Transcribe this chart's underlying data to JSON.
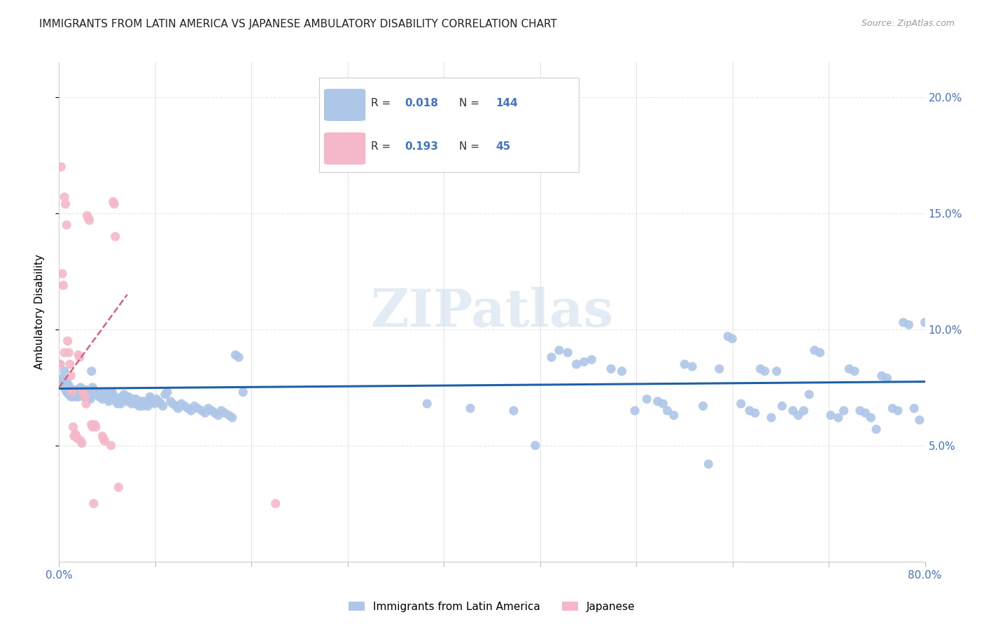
{
  "title": "IMMIGRANTS FROM LATIN AMERICA VS JAPANESE AMBULATORY DISABILITY CORRELATION CHART",
  "source": "Source: ZipAtlas.com",
  "ylabel": "Ambulatory Disability",
  "watermark": "ZIPatlas",
  "blue_scatter_color": "#aec6e8",
  "pink_scatter_color": "#f4b8c8",
  "blue_line_color": "#1f5fa6",
  "pink_line_color": "#d9607a",
  "blue_label": "Immigrants from Latin America",
  "pink_label": "Japanese",
  "blue_R": "0.018",
  "blue_N": "144",
  "pink_R": "0.193",
  "pink_N": "45",
  "xlim": [
    0.0,
    0.8
  ],
  "ylim": [
    0.0,
    0.215
  ],
  "yticks": [
    0.05,
    0.1,
    0.15,
    0.2
  ],
  "ytick_labels": [
    "5.0%",
    "10.0%",
    "15.0%",
    "20.0%"
  ],
  "blue_trend_x": [
    0.0,
    0.8
  ],
  "blue_trend_y": [
    0.0745,
    0.0775
  ],
  "pink_trend_x": [
    0.0,
    0.063
  ],
  "pink_trend_y": [
    0.075,
    0.115
  ],
  "blue_scatter": [
    [
      0.001,
      0.085
    ],
    [
      0.002,
      0.077
    ],
    [
      0.003,
      0.079
    ],
    [
      0.004,
      0.078
    ],
    [
      0.005,
      0.076
    ],
    [
      0.005,
      0.082
    ],
    [
      0.006,
      0.075
    ],
    [
      0.006,
      0.074
    ],
    [
      0.007,
      0.076
    ],
    [
      0.007,
      0.073
    ],
    [
      0.007,
      0.078
    ],
    [
      0.008,
      0.074
    ],
    [
      0.008,
      0.073
    ],
    [
      0.009,
      0.076
    ],
    [
      0.009,
      0.075
    ],
    [
      0.009,
      0.072
    ],
    [
      0.01,
      0.074
    ],
    [
      0.01,
      0.073
    ],
    [
      0.011,
      0.072
    ],
    [
      0.011,
      0.071
    ],
    [
      0.012,
      0.074
    ],
    [
      0.012,
      0.073
    ],
    [
      0.013,
      0.072
    ],
    [
      0.013,
      0.071
    ],
    [
      0.014,
      0.073
    ],
    [
      0.014,
      0.072
    ],
    [
      0.015,
      0.074
    ],
    [
      0.015,
      0.073
    ],
    [
      0.016,
      0.072
    ],
    [
      0.016,
      0.071
    ],
    [
      0.017,
      0.073
    ],
    [
      0.017,
      0.072
    ],
    [
      0.018,
      0.071
    ],
    [
      0.019,
      0.072
    ],
    [
      0.02,
      0.073
    ],
    [
      0.02,
      0.075
    ],
    [
      0.021,
      0.074
    ],
    [
      0.021,
      0.073
    ],
    [
      0.022,
      0.072
    ],
    [
      0.023,
      0.071
    ],
    [
      0.024,
      0.073
    ],
    [
      0.025,
      0.074
    ],
    [
      0.026,
      0.073
    ],
    [
      0.027,
      0.072
    ],
    [
      0.028,
      0.071
    ],
    [
      0.029,
      0.07
    ],
    [
      0.03,
      0.082
    ],
    [
      0.031,
      0.075
    ],
    [
      0.032,
      0.074
    ],
    [
      0.033,
      0.073
    ],
    [
      0.034,
      0.072
    ],
    [
      0.035,
      0.073
    ],
    [
      0.036,
      0.072
    ],
    [
      0.037,
      0.071
    ],
    [
      0.038,
      0.072
    ],
    [
      0.039,
      0.071
    ],
    [
      0.04,
      0.07
    ],
    [
      0.041,
      0.072
    ],
    [
      0.042,
      0.073
    ],
    [
      0.043,
      0.072
    ],
    [
      0.044,
      0.071
    ],
    [
      0.045,
      0.07
    ],
    [
      0.046,
      0.069
    ],
    [
      0.047,
      0.072
    ],
    [
      0.048,
      0.071
    ],
    [
      0.049,
      0.073
    ],
    [
      0.05,
      0.072
    ],
    [
      0.051,
      0.071
    ],
    [
      0.052,
      0.07
    ],
    [
      0.053,
      0.069
    ],
    [
      0.054,
      0.068
    ],
    [
      0.055,
      0.07
    ],
    [
      0.056,
      0.069
    ],
    [
      0.057,
      0.068
    ],
    [
      0.058,
      0.071
    ],
    [
      0.059,
      0.07
    ],
    [
      0.06,
      0.072
    ],
    [
      0.061,
      0.071
    ],
    [
      0.062,
      0.07
    ],
    [
      0.063,
      0.069
    ],
    [
      0.064,
      0.071
    ],
    [
      0.065,
      0.07
    ],
    [
      0.066,
      0.069
    ],
    [
      0.067,
      0.068
    ],
    [
      0.068,
      0.07
    ],
    [
      0.069,
      0.069
    ],
    [
      0.07,
      0.068
    ],
    [
      0.071,
      0.07
    ],
    [
      0.072,
      0.069
    ],
    [
      0.073,
      0.068
    ],
    [
      0.074,
      0.067
    ],
    [
      0.075,
      0.069
    ],
    [
      0.076,
      0.068
    ],
    [
      0.077,
      0.067
    ],
    [
      0.078,
      0.069
    ],
    [
      0.08,
      0.068
    ],
    [
      0.082,
      0.067
    ],
    [
      0.084,
      0.071
    ],
    [
      0.085,
      0.07
    ],
    [
      0.086,
      0.069
    ],
    [
      0.088,
      0.068
    ],
    [
      0.09,
      0.07
    ],
    [
      0.092,
      0.069
    ],
    [
      0.094,
      0.068
    ],
    [
      0.096,
      0.067
    ],
    [
      0.098,
      0.072
    ],
    [
      0.1,
      0.073
    ],
    [
      0.103,
      0.069
    ],
    [
      0.105,
      0.068
    ],
    [
      0.108,
      0.067
    ],
    [
      0.11,
      0.066
    ],
    [
      0.113,
      0.068
    ],
    [
      0.116,
      0.067
    ],
    [
      0.119,
      0.066
    ],
    [
      0.122,
      0.065
    ],
    [
      0.125,
      0.067
    ],
    [
      0.128,
      0.066
    ],
    [
      0.132,
      0.065
    ],
    [
      0.135,
      0.064
    ],
    [
      0.138,
      0.066
    ],
    [
      0.141,
      0.065
    ],
    [
      0.144,
      0.064
    ],
    [
      0.147,
      0.063
    ],
    [
      0.15,
      0.065
    ],
    [
      0.153,
      0.064
    ],
    [
      0.157,
      0.063
    ],
    [
      0.16,
      0.062
    ],
    [
      0.163,
      0.089
    ],
    [
      0.166,
      0.088
    ],
    [
      0.17,
      0.073
    ],
    [
      0.34,
      0.068
    ],
    [
      0.38,
      0.066
    ],
    [
      0.42,
      0.065
    ],
    [
      0.44,
      0.05
    ],
    [
      0.455,
      0.088
    ],
    [
      0.462,
      0.091
    ],
    [
      0.47,
      0.09
    ],
    [
      0.478,
      0.085
    ],
    [
      0.485,
      0.086
    ],
    [
      0.492,
      0.087
    ],
    [
      0.51,
      0.083
    ],
    [
      0.52,
      0.082
    ],
    [
      0.532,
      0.065
    ],
    [
      0.543,
      0.07
    ],
    [
      0.553,
      0.069
    ],
    [
      0.558,
      0.068
    ],
    [
      0.562,
      0.065
    ],
    [
      0.568,
      0.063
    ],
    [
      0.578,
      0.085
    ],
    [
      0.585,
      0.084
    ],
    [
      0.595,
      0.067
    ],
    [
      0.6,
      0.042
    ],
    [
      0.61,
      0.083
    ],
    [
      0.618,
      0.097
    ],
    [
      0.622,
      0.096
    ],
    [
      0.63,
      0.068
    ],
    [
      0.638,
      0.065
    ],
    [
      0.643,
      0.064
    ],
    [
      0.648,
      0.083
    ],
    [
      0.652,
      0.082
    ],
    [
      0.658,
      0.062
    ],
    [
      0.663,
      0.082
    ],
    [
      0.668,
      0.067
    ],
    [
      0.678,
      0.065
    ],
    [
      0.683,
      0.063
    ],
    [
      0.688,
      0.065
    ],
    [
      0.693,
      0.072
    ],
    [
      0.698,
      0.091
    ],
    [
      0.703,
      0.09
    ],
    [
      0.713,
      0.063
    ],
    [
      0.72,
      0.062
    ],
    [
      0.725,
      0.065
    ],
    [
      0.73,
      0.083
    ],
    [
      0.735,
      0.082
    ],
    [
      0.74,
      0.065
    ],
    [
      0.745,
      0.064
    ],
    [
      0.75,
      0.062
    ],
    [
      0.755,
      0.057
    ],
    [
      0.76,
      0.08
    ],
    [
      0.765,
      0.079
    ],
    [
      0.77,
      0.066
    ],
    [
      0.775,
      0.065
    ],
    [
      0.78,
      0.103
    ],
    [
      0.785,
      0.102
    ],
    [
      0.79,
      0.066
    ],
    [
      0.795,
      0.061
    ],
    [
      0.8,
      0.103
    ]
  ],
  "pink_scatter": [
    [
      0.001,
      0.085
    ],
    [
      0.002,
      0.17
    ],
    [
      0.003,
      0.124
    ],
    [
      0.004,
      0.119
    ],
    [
      0.005,
      0.09
    ],
    [
      0.005,
      0.157
    ],
    [
      0.006,
      0.154
    ],
    [
      0.007,
      0.145
    ],
    [
      0.008,
      0.095
    ],
    [
      0.009,
      0.09
    ],
    [
      0.01,
      0.085
    ],
    [
      0.011,
      0.08
    ],
    [
      0.012,
      0.073
    ],
    [
      0.013,
      0.058
    ],
    [
      0.014,
      0.054
    ],
    [
      0.015,
      0.055
    ],
    [
      0.016,
      0.054
    ],
    [
      0.017,
      0.053
    ],
    [
      0.018,
      0.089
    ],
    [
      0.019,
      0.088
    ],
    [
      0.02,
      0.052
    ],
    [
      0.021,
      0.051
    ],
    [
      0.022,
      0.073
    ],
    [
      0.023,
      0.072
    ],
    [
      0.024,
      0.071
    ],
    [
      0.025,
      0.068
    ],
    [
      0.026,
      0.149
    ],
    [
      0.027,
      0.148
    ],
    [
      0.028,
      0.147
    ],
    [
      0.03,
      0.059
    ],
    [
      0.031,
      0.058
    ],
    [
      0.032,
      0.025
    ],
    [
      0.033,
      0.059
    ],
    [
      0.034,
      0.058
    ],
    [
      0.04,
      0.054
    ],
    [
      0.041,
      0.053
    ],
    [
      0.042,
      0.052
    ],
    [
      0.048,
      0.05
    ],
    [
      0.05,
      0.155
    ],
    [
      0.051,
      0.154
    ],
    [
      0.052,
      0.14
    ],
    [
      0.055,
      0.032
    ],
    [
      0.2,
      0.025
    ]
  ],
  "background_color": "#ffffff",
  "grid_color": "#e5e5e5",
  "title_fontsize": 11,
  "axis_label_color": "#4472c4",
  "legend_R_color": "#4472c4"
}
